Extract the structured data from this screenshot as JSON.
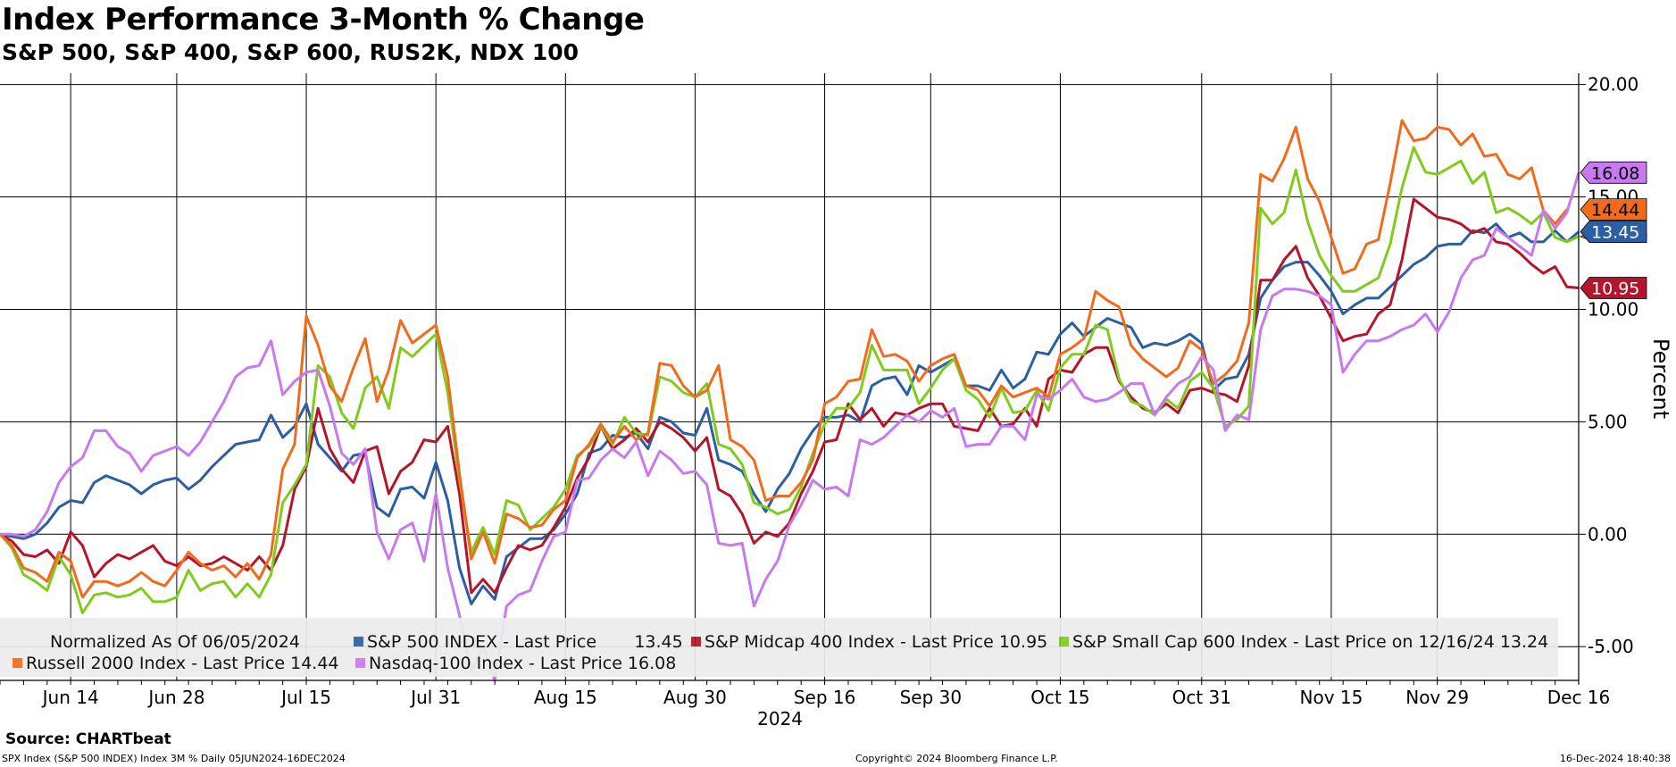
{
  "header": {
    "title": "Index Performance 3-Month % Change",
    "subtitle": "S&P 500, S&P 400, S&P 600, RUS2K, NDX 100"
  },
  "footer": {
    "source": "Source: CHARTbeat",
    "left": "SPX Index (S&P 500 INDEX) Index 3M %  Daily 05JUN2024-16DEC2024",
    "middle": "Copyright© 2024 Bloomberg Finance L.P.",
    "right": "16-Dec-2024 18:40:38"
  },
  "legend": {
    "note": "Normalized As Of 06/05/2024",
    "entries": [
      {
        "label": "S&P 500 INDEX - Last Price       13.45",
        "color": "#2b5fa3"
      },
      {
        "label": "S&P Midcap 400 Index - Last Price 10.95",
        "color": "#b5152b"
      },
      {
        "label": "S&P Small Cap 600 Index - Last Price on 12/16/24 13.24",
        "color": "#7fcc1c"
      },
      {
        "label": "Russell 2000 Index - Last Price 14.44",
        "color": "#f26a1b"
      },
      {
        "label": "Nasdaq-100 Index - Last Price 16.08",
        "color": "#c879f0"
      }
    ]
  },
  "chart_data": {
    "type": "line",
    "ylabel": "Percent",
    "xlabel": "2024",
    "ylim": [
      -6.5,
      20.5
    ],
    "yticks": [
      "20.00",
      "15.00",
      "10.00",
      "5.00",
      "0.00",
      "-5.00"
    ],
    "ytick_values": [
      20,
      15,
      10,
      5,
      0,
      -5
    ],
    "xticks": [
      "Jun 14",
      "Jun 28",
      "Jul 15",
      "Jul 31",
      "Aug 15",
      "Aug 30",
      "Sep 16",
      "Sep 30",
      "Oct 15",
      "Oct 31",
      "Nov 15",
      "Nov 29",
      "Dec 16"
    ],
    "xtick_index": [
      6,
      15,
      26,
      37,
      48,
      59,
      70,
      79,
      90,
      102,
      113,
      122,
      134
    ],
    "grid": true,
    "legend_position": "bottom",
    "n_points": 135,
    "series": [
      {
        "name": "S&P 500 INDEX",
        "color": "#2b5fa3",
        "end_label": "13.45",
        "values": [
          0.0,
          -0.1,
          -0.2,
          0.0,
          0.5,
          1.2,
          1.5,
          1.4,
          2.3,
          2.6,
          2.4,
          2.2,
          1.8,
          2.2,
          2.4,
          2.5,
          2.0,
          2.4,
          3.0,
          3.5,
          4.0,
          4.1,
          4.2,
          5.3,
          4.3,
          4.8,
          5.8,
          4.0,
          3.4,
          2.8,
          3.5,
          3.6,
          1.2,
          0.8,
          2.0,
          2.1,
          1.6,
          3.2,
          1.5,
          -1.5,
          -3.1,
          -2.3,
          -2.9,
          -1.0,
          -0.6,
          -0.2,
          -0.2,
          0.2,
          0.9,
          1.8,
          3.6,
          3.8,
          4.4,
          4.3,
          4.5,
          3.8,
          5.2,
          5.0,
          4.5,
          4.4,
          5.6,
          3.3,
          3.1,
          2.8,
          1.8,
          1.0,
          2.0,
          2.7,
          3.8,
          4.6,
          5.2,
          5.2,
          5.3,
          5.0,
          6.6,
          6.9,
          7.0,
          6.2,
          7.5,
          7.2,
          7.5,
          7.8,
          6.6,
          6.6,
          6.4,
          7.3,
          6.5,
          6.9,
          8.1,
          8.0,
          8.9,
          9.4,
          8.8,
          9.2,
          9.6,
          9.4,
          9.2,
          8.3,
          8.5,
          8.4,
          8.6,
          8.9,
          8.5,
          6.4,
          6.9,
          7.0,
          8.0,
          10.5,
          11.3,
          11.9,
          12.1,
          12.1,
          11.5,
          10.8,
          9.8,
          10.2,
          10.5,
          10.5,
          11.0,
          11.5,
          12.0,
          12.3,
          12.8,
          12.9,
          12.9,
          13.5,
          13.4,
          13.8,
          13.2,
          13.4,
          13.0,
          13.0,
          13.5,
          13.0,
          13.45
        ]
      },
      {
        "name": "S&P Midcap 400 Index",
        "color": "#b5152b",
        "end_label": "10.95",
        "values": [
          0.0,
          -0.3,
          -0.9,
          -1.0,
          -0.7,
          -1.3,
          0.1,
          -0.5,
          -1.9,
          -1.3,
          -0.9,
          -1.1,
          -0.8,
          -0.5,
          -1.2,
          -1.4,
          -1.0,
          -1.4,
          -1.3,
          -1.0,
          -1.3,
          -1.6,
          -1.0,
          -1.6,
          -0.5,
          2.0,
          3.0,
          5.6,
          3.8,
          2.9,
          2.3,
          3.7,
          3.9,
          1.8,
          2.8,
          3.2,
          4.2,
          4.1,
          4.8,
          1.8,
          -2.6,
          -2.0,
          -2.6,
          -1.5,
          -0.5,
          -0.7,
          -0.5,
          0.3,
          1.2,
          2.5,
          3.4,
          4.8,
          3.8,
          4.2,
          4.7,
          4.1,
          5.0,
          4.7,
          4.3,
          3.7,
          4.3,
          2.0,
          1.7,
          0.9,
          -0.4,
          0.1,
          -0.1,
          0.5,
          1.8,
          2.8,
          4.1,
          4.2,
          5.8,
          5.1,
          5.6,
          4.8,
          5.4,
          5.3,
          5.6,
          5.8,
          5.8,
          4.8,
          4.7,
          4.6,
          5.6,
          4.8,
          4.9,
          5.6,
          4.8,
          6.9,
          7.3,
          7.2,
          8.0,
          8.3,
          8.3,
          6.8,
          6.1,
          5.6,
          5.4,
          5.8,
          5.4,
          6.4,
          6.5,
          6.3,
          6.2,
          5.9,
          7.5,
          11.3,
          11.3,
          12.2,
          12.8,
          11.4,
          10.6,
          9.6,
          8.6,
          8.8,
          8.9,
          9.8,
          10.2,
          12.2,
          14.9,
          14.5,
          14.1,
          14.0,
          13.8,
          13.4,
          13.6,
          13.0,
          12.9,
          12.5,
          12.0,
          11.6,
          11.9,
          11.0,
          10.95
        ]
      },
      {
        "name": "S&P Small Cap 600 Index",
        "color": "#7fcc1c",
        "end_label": "13.24",
        "values": [
          0.0,
          -0.6,
          -1.8,
          -2.1,
          -2.5,
          -1.0,
          -1.8,
          -3.5,
          -2.7,
          -2.6,
          -2.8,
          -2.7,
          -2.4,
          -3.0,
          -3.0,
          -2.8,
          -1.6,
          -2.5,
          -2.2,
          -2.1,
          -2.8,
          -2.2,
          -2.8,
          -1.8,
          1.4,
          2.2,
          3.1,
          7.5,
          7.0,
          5.4,
          4.7,
          6.5,
          7.0,
          5.6,
          8.3,
          7.9,
          8.4,
          8.9,
          6.3,
          2.4,
          -0.8,
          0.3,
          -0.9,
          1.5,
          1.3,
          0.2,
          0.7,
          1.2,
          2.0,
          3.5,
          3.9,
          4.8,
          4.0,
          5.2,
          4.5,
          4.4,
          7.0,
          6.8,
          6.3,
          6.1,
          6.7,
          4.0,
          3.8,
          3.1,
          1.4,
          1.2,
          0.9,
          1.1,
          2.1,
          3.6,
          4.9,
          5.6,
          5.6,
          6.3,
          8.4,
          7.3,
          7.3,
          7.3,
          5.8,
          6.5,
          7.3,
          7.8,
          6.4,
          6.0,
          5.2,
          6.5,
          5.4,
          5.5,
          6.4,
          5.5,
          7.4,
          8.0,
          8.0,
          9.3,
          9.1,
          6.9,
          5.9,
          5.7,
          5.3,
          6.0,
          5.6,
          6.8,
          7.2,
          6.5,
          4.8,
          5.1,
          5.7,
          14.5,
          13.8,
          14.3,
          16.2,
          13.9,
          12.4,
          11.5,
          10.8,
          10.8,
          11.1,
          11.4,
          12.9,
          15.4,
          17.2,
          16.1,
          16.0,
          16.3,
          16.6,
          15.6,
          16.1,
          14.3,
          14.5,
          14.2,
          13.8,
          14.3,
          13.2,
          13.0,
          13.24
        ]
      },
      {
        "name": "Russell 2000 Index",
        "color": "#f26a1b",
        "end_label": "14.44",
        "values": [
          0.0,
          -0.5,
          -1.5,
          -1.7,
          -2.1,
          -0.8,
          -1.2,
          -2.8,
          -2.1,
          -2.1,
          -2.3,
          -2.1,
          -1.7,
          -2.1,
          -2.3,
          -1.6,
          -0.8,
          -1.3,
          -1.6,
          -1.4,
          -1.9,
          -1.3,
          -2.0,
          -0.9,
          2.9,
          4.0,
          9.7,
          8.4,
          6.6,
          5.9,
          7.4,
          8.7,
          5.9,
          7.3,
          9.5,
          8.5,
          8.9,
          9.3,
          7.0,
          2.7,
          -1.1,
          0.1,
          -1.3,
          0.9,
          0.7,
          0.3,
          0.4,
          1.1,
          1.5,
          3.4,
          4.0,
          4.9,
          4.1,
          4.8,
          4.2,
          4.5,
          7.6,
          7.5,
          6.6,
          6.1,
          6.4,
          7.5,
          4.2,
          3.9,
          3.3,
          1.5,
          1.7,
          1.7,
          2.3,
          3.3,
          5.8,
          6.1,
          6.8,
          6.9,
          9.1,
          7.9,
          8.0,
          7.7,
          6.8,
          7.5,
          7.8,
          8.0,
          6.6,
          6.4,
          5.7,
          6.6,
          6.1,
          6.3,
          6.5,
          6.1,
          8.0,
          8.3,
          8.7,
          10.8,
          10.4,
          10.1,
          8.4,
          7.8,
          7.4,
          7.0,
          7.4,
          8.6,
          8.2,
          6.7,
          7.1,
          7.7,
          9.4,
          16.0,
          15.7,
          16.7,
          18.1,
          15.8,
          14.8,
          13.2,
          11.6,
          11.8,
          12.9,
          13.1,
          15.6,
          18.4,
          17.5,
          17.6,
          18.1,
          18.0,
          17.3,
          17.8,
          16.8,
          16.9,
          16.0,
          15.8,
          16.3,
          14.4,
          13.8,
          14.44
        ]
      },
      {
        "name": "Nasdaq-100 Index",
        "color": "#c879f0",
        "end_label": "16.08",
        "values": [
          0.0,
          0.0,
          -0.1,
          0.2,
          1.0,
          2.3,
          3.0,
          3.4,
          4.6,
          4.6,
          3.9,
          3.6,
          2.8,
          3.5,
          3.7,
          3.9,
          3.5,
          4.1,
          5.0,
          5.9,
          7.0,
          7.4,
          7.5,
          8.6,
          6.2,
          6.8,
          7.2,
          7.3,
          5.7,
          3.6,
          3.1,
          3.8,
          0.1,
          -1.1,
          0.2,
          0.5,
          -1.2,
          1.8,
          -1.5,
          -3.6,
          -6.1,
          -5.0,
          -6.5,
          -3.2,
          -2.7,
          -2.5,
          -1.2,
          -0.1,
          0.1,
          2.4,
          2.5,
          3.3,
          3.8,
          3.4,
          4.1,
          2.6,
          3.7,
          3.3,
          2.7,
          2.8,
          2.2,
          -0.4,
          -0.5,
          -0.4,
          -3.2,
          -2.0,
          -1.2,
          0.4,
          1.3,
          2.4,
          2.0,
          2.1,
          1.7,
          4.2,
          4.0,
          4.3,
          4.8,
          5.3,
          5.0,
          5.5,
          5.2,
          5.6,
          3.9,
          4.0,
          4.0,
          4.8,
          4.8,
          4.2,
          6.2,
          6.0,
          6.4,
          6.9,
          6.1,
          5.9,
          6.0,
          6.3,
          6.7,
          6.7,
          5.3,
          6.1,
          6.7,
          7.0,
          7.9,
          7.3,
          4.6,
          5.3,
          5.1,
          9.1,
          10.6,
          10.9,
          10.9,
          10.8,
          10.6,
          10.2,
          7.2,
          8.0,
          8.6,
          8.6,
          8.8,
          9.1,
          9.3,
          9.8,
          9.0,
          9.9,
          11.4,
          12.2,
          12.4,
          13.6,
          13.2,
          12.8,
          12.4,
          14.4,
          13.6,
          14.3,
          16.08
        ]
      }
    ]
  }
}
